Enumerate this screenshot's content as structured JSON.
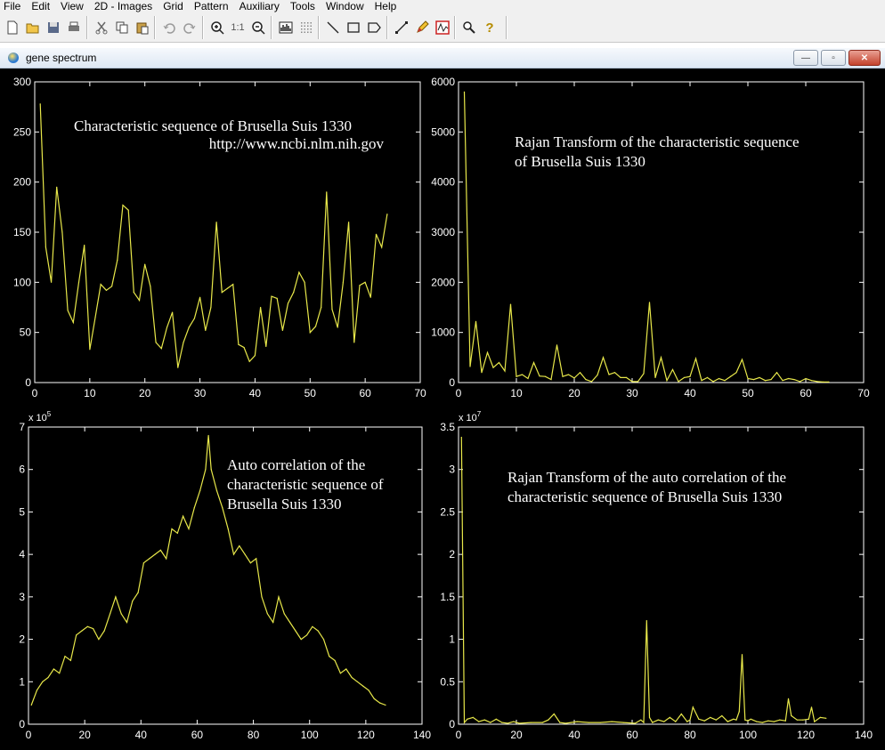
{
  "menu": [
    "File",
    "Edit",
    "View",
    "2D - Images",
    "Grid",
    "Pattern",
    "Auxiliary",
    "Tools",
    "Window",
    "Help"
  ],
  "toolbar": {
    "icons": [
      "new-file-icon",
      "open-folder-icon",
      "save-icon",
      "print-icon",
      "cut-icon",
      "copy-icon",
      "paste-icon",
      "undo-icon",
      "redo-icon",
      "zoom-in-icon",
      "actual-size-icon",
      "zoom-out-icon",
      "histogram-icon",
      "grid-dots-icon",
      "line-tool-icon",
      "rectangle-tool-icon",
      "polygon-tool-icon",
      "measure-icon",
      "pencil-icon",
      "signal-icon",
      "search-icon",
      "help-icon"
    ],
    "actual_size_label": "1:1",
    "help_glyph": "?"
  },
  "document": {
    "title": "gene spectrum",
    "controls": {
      "minimize": "—",
      "restore": "▫",
      "close": "✕"
    }
  },
  "colors": {
    "plot_bg": "#000000",
    "axis": "#ffffff",
    "trace": "#e8e84a",
    "annotation": "#ffffff"
  },
  "chart_data": [
    {
      "type": "line",
      "title": "",
      "annotation": [
        "Characteristic sequence of Brusella Suis 1330",
        "http://www.ncbi.nlm.nih.gov"
      ],
      "xlim": [
        0,
        70
      ],
      "ylim": [
        0,
        300
      ],
      "xticks": [
        0,
        10,
        20,
        30,
        40,
        50,
        60,
        70
      ],
      "yticks": [
        0,
        50,
        100,
        150,
        200,
        250,
        300
      ],
      "exponent": "",
      "x": [
        1,
        2,
        3,
        4,
        5,
        6,
        7,
        8,
        9,
        10,
        11,
        12,
        13,
        14,
        15,
        16,
        17,
        18,
        19,
        20,
        21,
        22,
        23,
        24,
        25,
        26,
        27,
        28,
        29,
        30,
        31,
        32,
        33,
        34,
        35,
        36,
        37,
        38,
        39,
        40,
        41,
        42,
        43,
        44,
        45,
        46,
        47,
        48,
        49,
        50,
        51,
        52,
        53,
        54,
        55,
        56,
        57,
        58,
        59,
        60,
        61,
        62,
        63,
        64
      ],
      "values": [
        278,
        135,
        100,
        195,
        150,
        72,
        60,
        100,
        137,
        33,
        65,
        98,
        92,
        96,
        122,
        177,
        172,
        90,
        82,
        118,
        96,
        40,
        34,
        55,
        70,
        15,
        40,
        55,
        64,
        85,
        52,
        75,
        160,
        90,
        94,
        98,
        38,
        35,
        21,
        27,
        75,
        36,
        86,
        84,
        52,
        79,
        90,
        110,
        100,
        50,
        56,
        75,
        190,
        73,
        55,
        100,
        160,
        40,
        97,
        100,
        85,
        148,
        135,
        168
      ]
    },
    {
      "type": "line",
      "title": "",
      "annotation": [
        "Rajan Transform of the characteristic sequence",
        "of Brusella Suis 1330"
      ],
      "xlim": [
        0,
        70
      ],
      "ylim": [
        0,
        6000
      ],
      "xticks": [
        0,
        10,
        20,
        30,
        40,
        50,
        60,
        70
      ],
      "yticks": [
        0,
        1000,
        2000,
        3000,
        4000,
        5000,
        6000
      ],
      "exponent": "",
      "x": [
        1,
        2,
        3,
        4,
        5,
        6,
        7,
        8,
        9,
        10,
        11,
        12,
        13,
        14,
        15,
        16,
        17,
        18,
        19,
        20,
        21,
        22,
        23,
        24,
        25,
        26,
        27,
        28,
        29,
        30,
        31,
        32,
        33,
        34,
        35,
        36,
        37,
        38,
        39,
        40,
        41,
        42,
        43,
        44,
        45,
        46,
        47,
        48,
        49,
        50,
        51,
        52,
        53,
        54,
        55,
        56,
        57,
        58,
        59,
        60,
        61,
        62,
        63,
        64
      ],
      "values": [
        5800,
        320,
        1220,
        200,
        600,
        300,
        400,
        230,
        1560,
        120,
        160,
        80,
        400,
        130,
        120,
        60,
        750,
        120,
        160,
        90,
        200,
        60,
        20,
        150,
        500,
        160,
        200,
        100,
        100,
        20,
        20,
        180,
        1600,
        100,
        500,
        40,
        260,
        20,
        100,
        120,
        480,
        40,
        100,
        20,
        80,
        40,
        120,
        200,
        460,
        80,
        60,
        100,
        40,
        60,
        200,
        40,
        80,
        60,
        20,
        80,
        40,
        20,
        10,
        10
      ]
    },
    {
      "type": "line",
      "title": "",
      "annotation": [
        "Auto correlation of the",
        "characteristic sequence of",
        "Brusella Suis 1330"
      ],
      "xlim": [
        0,
        140
      ],
      "ylim": [
        0,
        7
      ],
      "xticks": [
        0,
        20,
        40,
        60,
        80,
        100,
        120,
        140
      ],
      "yticks": [
        0,
        1,
        2,
        3,
        4,
        5,
        6,
        7
      ],
      "exponent": "x 10^5",
      "x": [
        1,
        3,
        5,
        7,
        9,
        11,
        13,
        15,
        17,
        19,
        21,
        23,
        25,
        27,
        29,
        31,
        33,
        35,
        37,
        39,
        41,
        43,
        45,
        47,
        49,
        51,
        53,
        55,
        57,
        59,
        61,
        63,
        64,
        65,
        67,
        69,
        71,
        73,
        75,
        77,
        79,
        81,
        83,
        85,
        87,
        89,
        91,
        93,
        95,
        97,
        99,
        101,
        103,
        105,
        107,
        109,
        111,
        113,
        115,
        117,
        119,
        121,
        123,
        125,
        127
      ],
      "values": [
        0.45,
        0.8,
        1.0,
        1.1,
        1.3,
        1.2,
        1.6,
        1.5,
        2.1,
        2.2,
        2.3,
        2.25,
        2.0,
        2.2,
        2.6,
        3.0,
        2.6,
        2.4,
        2.9,
        3.1,
        3.8,
        3.9,
        4.0,
        4.1,
        3.9,
        4.6,
        4.5,
        4.9,
        4.6,
        5.1,
        5.5,
        6.0,
        6.8,
        6.0,
        5.5,
        5.1,
        4.6,
        4.0,
        4.2,
        4.0,
        3.8,
        3.9,
        3.0,
        2.6,
        2.4,
        3.0,
        2.6,
        2.4,
        2.2,
        2.0,
        2.1,
        2.3,
        2.2,
        2.0,
        1.6,
        1.5,
        1.2,
        1.3,
        1.1,
        1.0,
        0.9,
        0.8,
        0.6,
        0.5,
        0.45
      ]
    },
    {
      "type": "line",
      "title": "",
      "annotation": [
        "Rajan Transform of the auto correlation of the",
        "characteristic sequence of Brusella Suis 1330"
      ],
      "xlim": [
        0,
        140
      ],
      "ylim": [
        0,
        3.5
      ],
      "xticks": [
        0,
        20,
        40,
        60,
        80,
        100,
        120,
        140
      ],
      "yticks": [
        0,
        0.5,
        1,
        1.5,
        2,
        2.5,
        3,
        3.5
      ],
      "exponent": "x 10^7",
      "x": [
        1,
        2,
        3,
        5,
        7,
        9,
        11,
        13,
        15,
        17,
        19,
        21,
        25,
        29,
        31,
        33,
        35,
        37,
        41,
        45,
        49,
        53,
        57,
        61,
        63,
        64,
        65,
        66,
        67,
        69,
        71,
        73,
        75,
        77,
        79,
        80,
        81,
        83,
        85,
        87,
        89,
        91,
        93,
        95,
        96,
        97,
        98,
        99,
        100,
        101,
        103,
        105,
        107,
        109,
        111,
        113,
        114,
        115,
        117,
        119,
        121,
        122,
        123,
        125,
        127
      ],
      "values": [
        3.38,
        0.02,
        0.06,
        0.08,
        0.03,
        0.05,
        0.02,
        0.06,
        0.02,
        0.01,
        0.03,
        0.01,
        0.02,
        0.02,
        0.05,
        0.12,
        0.02,
        0.01,
        0.03,
        0.02,
        0.02,
        0.03,
        0.02,
        0.01,
        0.05,
        0.02,
        1.22,
        0.08,
        0.02,
        0.05,
        0.03,
        0.08,
        0.03,
        0.12,
        0.03,
        0.05,
        0.2,
        0.06,
        0.04,
        0.08,
        0.05,
        0.1,
        0.03,
        0.06,
        0.05,
        0.15,
        0.82,
        0.05,
        0.04,
        0.06,
        0.03,
        0.02,
        0.04,
        0.03,
        0.05,
        0.04,
        0.3,
        0.1,
        0.05,
        0.05,
        0.06,
        0.2,
        0.03,
        0.08,
        0.07
      ]
    }
  ]
}
